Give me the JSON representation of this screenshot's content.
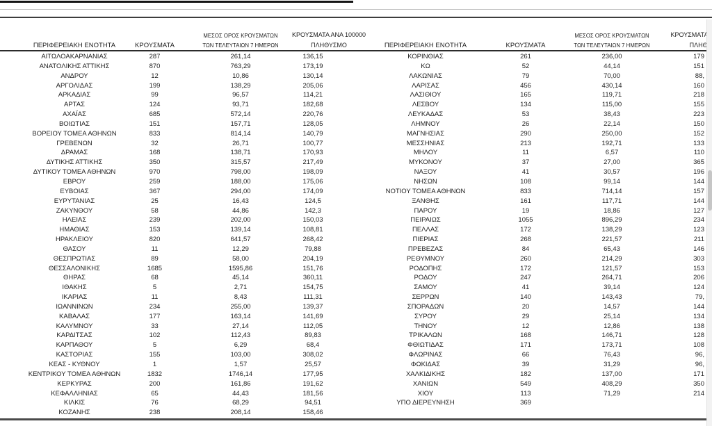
{
  "header": {
    "region": "ΠΕΡΙΦΕΡΕΙΑΚΗ ΕΝΟΤΗΤΑ",
    "cases": "ΚΡΟΥΣΜΑΤΑ",
    "avg7_line1": "ΜΕΣΟΣ ΟΡΟΣ ΚΡΟΥΣΜΑΤΩΝ",
    "avg7_line2": "ΤΩΝ ΤΕΛΕΥΤΑΙΩΝ 7 ΗΜΕΡΩΝ",
    "per100k_line1": "ΚΡΟΥΣΜΑΤΑ ΑΝΑ 100000",
    "per100k_line2": "ΠΛΗΘΥΣΜΟ"
  },
  "left_table": {
    "rows": [
      [
        "ΑΙΤΩΛΟΑΚΑΡΝΑΝΙΑΣ",
        "287",
        "261,14",
        "136,15"
      ],
      [
        "ΑΝΑΤΟΛΙΚΗΣ ΑΤΤΙΚΗΣ",
        "870",
        "763,29",
        "173,19"
      ],
      [
        "ΑΝΔΡΟΥ",
        "12",
        "10,86",
        "130,14"
      ],
      [
        "ΑΡΓΟΛΙΔΑΣ",
        "199",
        "138,29",
        "205,06"
      ],
      [
        "ΑΡΚΑΔΙΑΣ",
        "99",
        "96,57",
        "114,21"
      ],
      [
        "ΑΡΤΑΣ",
        "124",
        "93,71",
        "182,68"
      ],
      [
        "ΑΧΑΪΑΣ",
        "685",
        "572,14",
        "220,76"
      ],
      [
        "ΒΟΙΩΤΙΑΣ",
        "151",
        "157,71",
        "128,05"
      ],
      [
        "ΒΟΡΕΙΟΥ ΤΟΜΕΑ ΑΘΗΝΩΝ",
        "833",
        "814,14",
        "140,79"
      ],
      [
        "ΓΡΕΒΕΝΩΝ",
        "32",
        "26,71",
        "100,77"
      ],
      [
        "ΔΡΑΜΑΣ",
        "168",
        "138,71",
        "170,93"
      ],
      [
        "ΔΥΤΙΚΗΣ ΑΤΤΙΚΗΣ",
        "350",
        "315,57",
        "217,49"
      ],
      [
        "ΔΥΤΙΚΟΥ ΤΟΜΕΑ ΑΘΗΝΩΝ",
        "970",
        "798,00",
        "198,09"
      ],
      [
        "ΕΒΡΟΥ",
        "259",
        "188,00",
        "175,06"
      ],
      [
        "ΕΥΒΟΙΑΣ",
        "367",
        "294,00",
        "174,09"
      ],
      [
        "ΕΥΡΥΤΑΝΙΑΣ",
        "25",
        "16,43",
        "124,5"
      ],
      [
        "ΖΑΚΥΝΘΟΥ",
        "58",
        "44,86",
        "142,3"
      ],
      [
        "ΗΛΕΙΑΣ",
        "239",
        "202,00",
        "150,03"
      ],
      [
        "ΗΜΑΘΙΑΣ",
        "153",
        "139,14",
        "108,81"
      ],
      [
        "ΗΡΑΚΛΕΙΟΥ",
        "820",
        "641,57",
        "268,42"
      ],
      [
        "ΘΑΣΟΥ",
        "11",
        "12,29",
        "79,88"
      ],
      [
        "ΘΕΣΠΡΩΤΙΑΣ",
        "89",
        "58,00",
        "204,19"
      ],
      [
        "ΘΕΣΣΑΛΟΝΙΚΗΣ",
        "1685",
        "1595,86",
        "151,76"
      ],
      [
        "ΘΗΡΑΣ",
        "68",
        "45,14",
        "360,11"
      ],
      [
        "ΙΘΑΚΗΣ",
        "5",
        "2,71",
        "154,75"
      ],
      [
        "ΙΚΑΡΙΑΣ",
        "11",
        "8,43",
        "111,31"
      ],
      [
        "ΙΩΑΝΝΙΝΩΝ",
        "234",
        "255,00",
        "139,37"
      ],
      [
        "ΚΑΒΑΛΑΣ",
        "177",
        "163,14",
        "141,69"
      ],
      [
        "ΚΑΛΥΜΝΟΥ",
        "33",
        "27,14",
        "112,05"
      ],
      [
        "ΚΑΡΔΙΤΣΑΣ",
        "102",
        "112,43",
        "89,83"
      ],
      [
        "ΚΑΡΠΑΘΟΥ",
        "5",
        "6,29",
        "68,4"
      ],
      [
        "ΚΑΣΤΟΡΙΑΣ",
        "155",
        "103,00",
        "308,02"
      ],
      [
        "ΚΕΑΣ - ΚΥΘΝΟΥ",
        "1",
        "1,57",
        "25,57"
      ],
      [
        "ΚΕΝΤΡΙΚΟΥ ΤΟΜΕΑ ΑΘΗΝΩΝ",
        "1832",
        "1746,14",
        "177,95"
      ],
      [
        "ΚΕΡΚΥΡΑΣ",
        "200",
        "161,86",
        "191,62"
      ],
      [
        "ΚΕΦΑΛΛΗΝΙΑΣ",
        "65",
        "44,43",
        "181,56"
      ],
      [
        "ΚΙΛΚΙΣ",
        "76",
        "68,29",
        "94,51"
      ],
      [
        "ΚΟΖΑΝΗΣ",
        "238",
        "208,14",
        "158,46"
      ]
    ]
  },
  "right_table": {
    "rows": [
      [
        "ΚΟΡΙΝΘΙΑΣ",
        "261",
        "236,00",
        "179"
      ],
      [
        "ΚΩ",
        "52",
        "44,14",
        "151"
      ],
      [
        "ΛΑΚΩΝΙΑΣ",
        "79",
        "70,00",
        "88,"
      ],
      [
        "ΛΑΡΙΣΑΣ",
        "456",
        "430,14",
        "160"
      ],
      [
        "ΛΑΣΙΘΙΟΥ",
        "165",
        "119,71",
        "218"
      ],
      [
        "ΛΕΣΒΟΥ",
        "134",
        "115,00",
        "155"
      ],
      [
        "ΛΕΥΚΑΔΑΣ",
        "53",
        "38,43",
        "223"
      ],
      [
        "ΛΗΜΝΟΥ",
        "26",
        "22,14",
        "150"
      ],
      [
        "ΜΑΓΝΗΣΙΑΣ",
        "290",
        "250,00",
        "152"
      ],
      [
        "ΜΕΣΣΗΝΙΑΣ",
        "213",
        "192,71",
        "133"
      ],
      [
        "ΜΗΛΟΥ",
        "11",
        "6,57",
        "110"
      ],
      [
        "ΜΥΚΟΝΟΥ",
        "37",
        "27,00",
        "365"
      ],
      [
        "ΝΑΞΟΥ",
        "41",
        "30,57",
        "196"
      ],
      [
        "ΝΗΣΩΝ",
        "108",
        "99,14",
        "144"
      ],
      [
        "ΝΟΤΙΟΥ ΤΟΜΕΑ ΑΘΗΝΩΝ",
        "833",
        "714,14",
        "157"
      ],
      [
        "ΞΑΝΘΗΣ",
        "161",
        "117,71",
        "144"
      ],
      [
        "ΠΑΡΟΥ",
        "19",
        "18,86",
        "127"
      ],
      [
        "ΠΕΙΡΑΙΩΣ",
        "1055",
        "896,29",
        "234"
      ],
      [
        "ΠΕΛΛΑΣ",
        "172",
        "138,29",
        "123"
      ],
      [
        "ΠΙΕΡΙΑΣ",
        "268",
        "221,57",
        "211"
      ],
      [
        "ΠΡΕΒΕΖΑΣ",
        "84",
        "65,43",
        "146"
      ],
      [
        "ΡΕΘΥΜΝΟΥ",
        "260",
        "214,29",
        "303"
      ],
      [
        "ΡΟΔΟΠΗΣ",
        "172",
        "121,57",
        "153"
      ],
      [
        "ΡΟΔΟΥ",
        "247",
        "264,71",
        "206"
      ],
      [
        "ΣΑΜΟΥ",
        "41",
        "39,14",
        "124"
      ],
      [
        "ΣΕΡΡΩΝ",
        "140",
        "143,43",
        "79,"
      ],
      [
        "ΣΠΟΡΑΔΩΝ",
        "20",
        "14,57",
        "144"
      ],
      [
        "ΣΥΡΟΥ",
        "29",
        "25,14",
        "134"
      ],
      [
        "ΤΗΝΟΥ",
        "12",
        "12,86",
        "138"
      ],
      [
        "ΤΡΙΚΑΛΩΝ",
        "168",
        "146,71",
        "128"
      ],
      [
        "ΦΘΙΩΤΙΔΑΣ",
        "171",
        "173,71",
        "108"
      ],
      [
        "ΦΛΩΡΙΝΑΣ",
        "66",
        "76,43",
        "96,"
      ],
      [
        "ΦΩΚΙΔΑΣ",
        "39",
        "31,29",
        "96,"
      ],
      [
        "ΧΑΛΚΙΔΙΚΗΣ",
        "182",
        "137,00",
        "171"
      ],
      [
        "ΧΑΝΙΩΝ",
        "549",
        "408,29",
        "350"
      ],
      [
        "ΧΙΟΥ",
        "113",
        "71,29",
        "214"
      ],
      [
        "ΥΠΟ ΔΙΕΡΕΥΝΗΣΗ",
        "369",
        "",
        ""
      ]
    ]
  },
  "colors": {
    "text": "#1f1f1f",
    "rule_dark": "#3d3d3d",
    "rule_light": "#bfbfbf",
    "scroll_track": "#f2f2f2",
    "scroll_thumb": "#c6c6c6"
  }
}
